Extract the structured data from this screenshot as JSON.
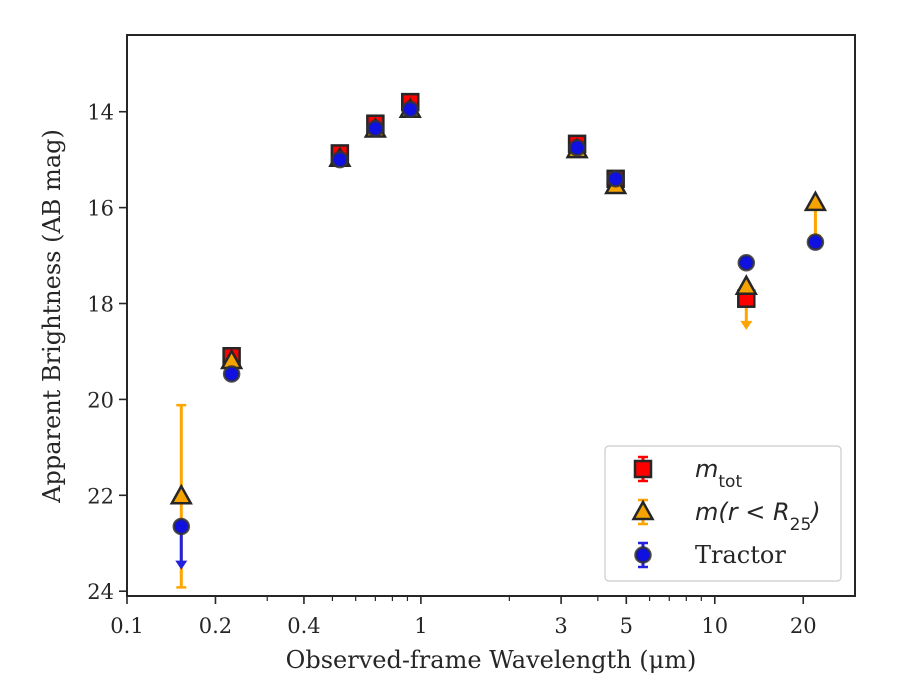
{
  "chart_data": {
    "type": "scatter",
    "xlabel": "Observed-frame Wavelength (μm)",
    "ylabel": "Apparent Brightness (AB mag)",
    "x_scale": "log",
    "y_inverted": true,
    "xlim": [
      0.1,
      30
    ],
    "ylim": [
      24.1,
      12.4
    ],
    "x_ticks": [
      0.1,
      0.2,
      0.4,
      1,
      3,
      5,
      10,
      20
    ],
    "x_tick_labels": [
      "0.1",
      "0.2",
      "0.4",
      "1",
      "3",
      "5",
      "10",
      "20"
    ],
    "y_ticks": [
      14,
      16,
      18,
      20,
      22,
      24
    ],
    "y_tick_labels": [
      "14",
      "16",
      "18",
      "20",
      "22",
      "24"
    ],
    "legend_position": "lower-right",
    "series": [
      {
        "name": "m_tot",
        "legend_main": "m",
        "legend_sub": "tot",
        "marker": "square",
        "color": "#ff0000",
        "ecolor": "#ff0000",
        "edgecolor": "#262626",
        "points": [
          {
            "x": 0.227,
            "y": 19.1,
            "err_lo": 0.05,
            "err_hi": 0.05
          },
          {
            "x": 0.53,
            "y": 14.87,
            "err_lo": 0.05,
            "err_hi": 0.05
          },
          {
            "x": 0.7,
            "y": 14.25,
            "err_lo": 0.05,
            "err_hi": 0.05
          },
          {
            "x": 0.92,
            "y": 13.8,
            "err_lo": 0.05,
            "err_hi": 0.05
          },
          {
            "x": 3.4,
            "y": 14.67,
            "err_lo": 0.03,
            "err_hi": 0.03
          },
          {
            "x": 4.6,
            "y": 15.4,
            "err_lo": 0.03,
            "err_hi": 0.03
          },
          {
            "x": 12.8,
            "y": 17.9,
            "err_lo": 0.05,
            "err_hi": 0.05
          }
        ]
      },
      {
        "name": "m(r<R25)",
        "legend_main": "m(r < R",
        "legend_sub": "25",
        "legend_tail": ")",
        "marker": "triangle",
        "color": "#f5a300",
        "ecolor": "#ffa500",
        "edgecolor": "#262626",
        "points": [
          {
            "x": 0.153,
            "y": 22.02,
            "err_lo": 1.9,
            "err_hi": 1.9
          },
          {
            "x": 0.227,
            "y": 19.2,
            "err_lo": 0.05,
            "err_hi": 0.05
          },
          {
            "x": 0.53,
            "y": 14.98,
            "err_lo": 0.03,
            "err_hi": 0.03
          },
          {
            "x": 0.7,
            "y": 14.37,
            "err_lo": 0.03,
            "err_hi": 0.03
          },
          {
            "x": 0.92,
            "y": 13.96,
            "err_lo": 0.03,
            "err_hi": 0.03
          },
          {
            "x": 3.4,
            "y": 14.8,
            "err_lo": 0.03,
            "err_hi": 0.03
          },
          {
            "x": 4.6,
            "y": 15.55,
            "err_lo": 0.03,
            "err_hi": 0.03
          },
          {
            "x": 12.8,
            "y": 17.65,
            "upper_limit_to": 18.55
          },
          {
            "x": 22.0,
            "y": 15.9,
            "upper_limit_to": 16.75
          }
        ]
      },
      {
        "name": "Tractor",
        "legend_main": "Tractor",
        "marker": "circle",
        "color": "#1010e0",
        "ecolor": "#2222dd",
        "edgecolor": "#333333",
        "points": [
          {
            "x": 0.153,
            "y": 22.65,
            "upper_limit_to": 23.55
          },
          {
            "x": 0.227,
            "y": 19.47,
            "err_lo": 0.05,
            "err_hi": 0.05
          },
          {
            "x": 0.53,
            "y": 15.0,
            "err_lo": 0.03,
            "err_hi": 0.03
          },
          {
            "x": 0.7,
            "y": 14.35,
            "err_lo": 0.03,
            "err_hi": 0.03
          },
          {
            "x": 0.92,
            "y": 13.95,
            "err_lo": 0.03,
            "err_hi": 0.03
          },
          {
            "x": 3.4,
            "y": 14.75,
            "err_lo": 0.03,
            "err_hi": 0.03
          },
          {
            "x": 4.6,
            "y": 15.4,
            "err_lo": 0.03,
            "err_hi": 0.03
          },
          {
            "x": 12.8,
            "y": 17.15,
            "err_lo": 0.05,
            "err_hi": 0.05
          },
          {
            "x": 22.0,
            "y": 16.72,
            "err_lo": 0.05,
            "err_hi": 0.05
          }
        ]
      }
    ]
  }
}
